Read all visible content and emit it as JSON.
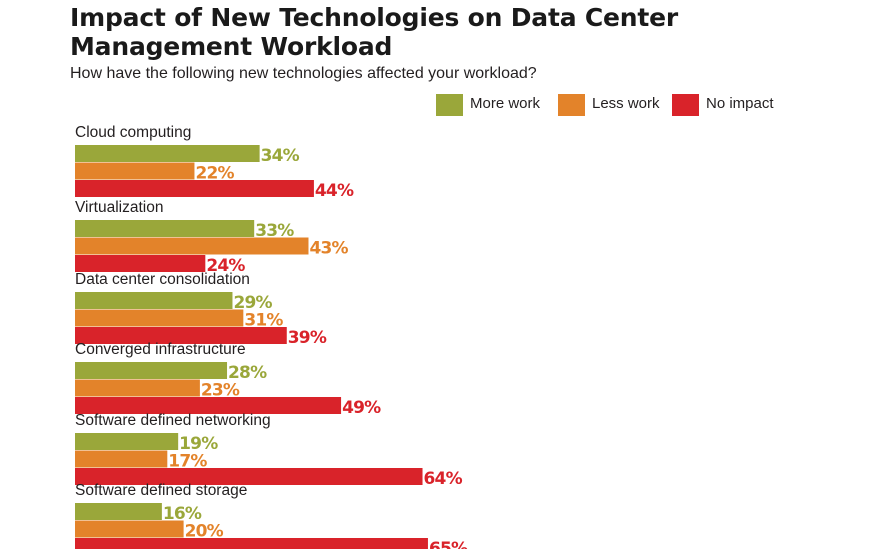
{
  "colors": {
    "more_work": "#9aa73a",
    "less_work": "#e3832a",
    "no_impact": "#d9232a",
    "text": "#231f20"
  },
  "chart_data": {
    "type": "bar",
    "orientation": "horizontal",
    "title": "Impact of New Technologies on Data Center Management Workload",
    "subtitle": "How have the following new technologies affected your workload?",
    "legend_position": "top-right",
    "value_suffix": "%",
    "categories": [
      "Cloud computing",
      "Virtualization",
      "Data center consolidation",
      "Converged infrastructure",
      "Software defined networking",
      "Software defined storage"
    ],
    "series": [
      {
        "name": "More work",
        "color": "#9aa73a",
        "values": [
          34,
          33,
          29,
          28,
          19,
          16
        ]
      },
      {
        "name": "Less work",
        "color": "#e3832a",
        "values": [
          22,
          43,
          31,
          23,
          17,
          20
        ]
      },
      {
        "name": "No impact",
        "color": "#d9232a",
        "values": [
          44,
          24,
          39,
          49,
          64,
          65
        ]
      }
    ],
    "xlim": [
      0,
      100
    ]
  }
}
